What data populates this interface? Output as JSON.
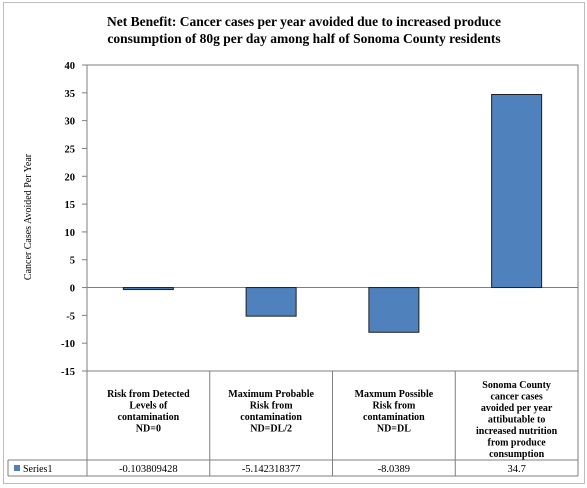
{
  "chart_data": {
    "type": "bar",
    "title_lines": [
      "Net Benefit: Cancer cases per year avoided due to increased produce",
      "consumption of 80g per day among half of Sonoma County residents"
    ],
    "ylabel": "Cancer Cases Avoided Per Year",
    "xlabel": "",
    "ylim": [
      -15,
      40
    ],
    "yticks": [
      "40",
      "35",
      "30",
      "25",
      "20",
      "15",
      "10",
      "5",
      "0",
      "-5",
      "-10",
      "-15"
    ],
    "categories": [
      [
        "Risk from Detected",
        "Levels of",
        "contamination",
        "ND=0"
      ],
      [
        "Maximum Probable",
        "Risk from",
        "contamination",
        "ND=DL/2"
      ],
      [
        "Maxmum Possible",
        "Risk from",
        "contamination",
        "ND=DL"
      ],
      [
        "Sonoma County",
        "cancer cases",
        "avoided per year",
        "attibutable to",
        "increased nutrition",
        "from produce",
        "consumption"
      ]
    ],
    "series": [
      {
        "name": "Series1",
        "values": [
          -0.103809428,
          -5.142318377,
          -8.0389,
          34.7
        ],
        "value_labels": [
          "-0.103809428",
          "-5.142318377",
          "-8.0389",
          "34.7"
        ]
      }
    ],
    "color": "#4f81bd",
    "grid": false,
    "legend": "data-table"
  }
}
